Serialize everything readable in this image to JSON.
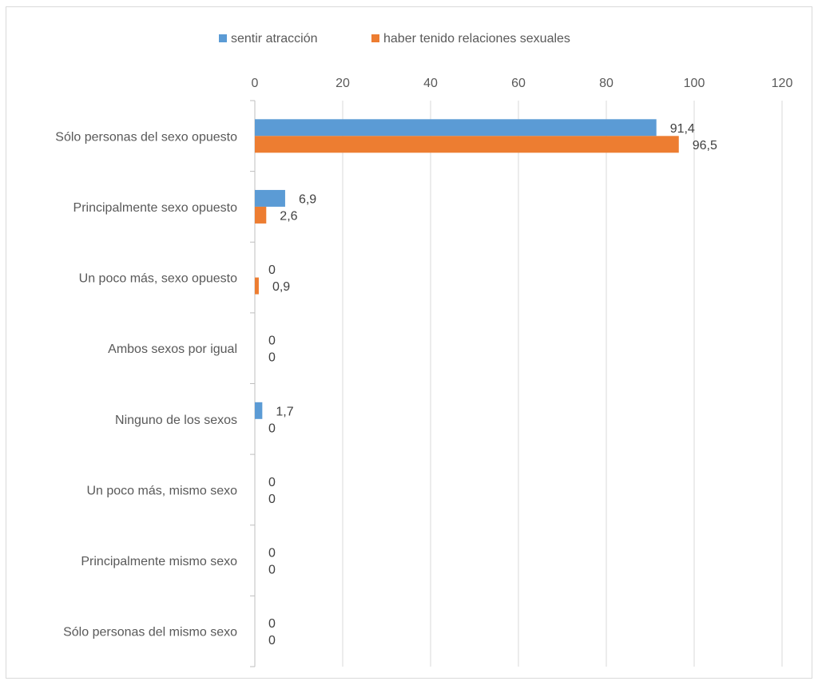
{
  "chart_data": {
    "type": "bar",
    "orientation": "horizontal",
    "title": "",
    "xlabel": "",
    "ylabel": "",
    "xlim": [
      0,
      120
    ],
    "x_ticks": [
      0,
      20,
      40,
      60,
      80,
      100,
      120
    ],
    "x_axis_position": "top",
    "grid": true,
    "legend_position": "top",
    "categories": [
      "Sólo personas del sexo opuesto",
      "Principalmente sexo opuesto",
      "Un poco más, sexo opuesto",
      "Ambos sexos por igual",
      "Ninguno de los sexos",
      "Un poco más, mismo sexo",
      "Principalmente mismo sexo",
      "Sólo personas del mismo sexo"
    ],
    "series": [
      {
        "name": "sentir atracción",
        "color": "#5b9bd5",
        "values": [
          91.4,
          6.9,
          0,
          0,
          1.7,
          0,
          0,
          0
        ],
        "labels": [
          "91,4",
          "6,9",
          "0",
          "0",
          "1,7",
          "0",
          "0",
          "0"
        ]
      },
      {
        "name": "haber tenido relaciones sexuales",
        "color": "#ed7d31",
        "values": [
          96.5,
          2.6,
          0.9,
          0,
          0,
          0,
          0,
          0
        ],
        "labels": [
          "96,5",
          "2,6",
          "0,9",
          "0",
          "0",
          "0",
          "0",
          "0"
        ]
      }
    ]
  }
}
